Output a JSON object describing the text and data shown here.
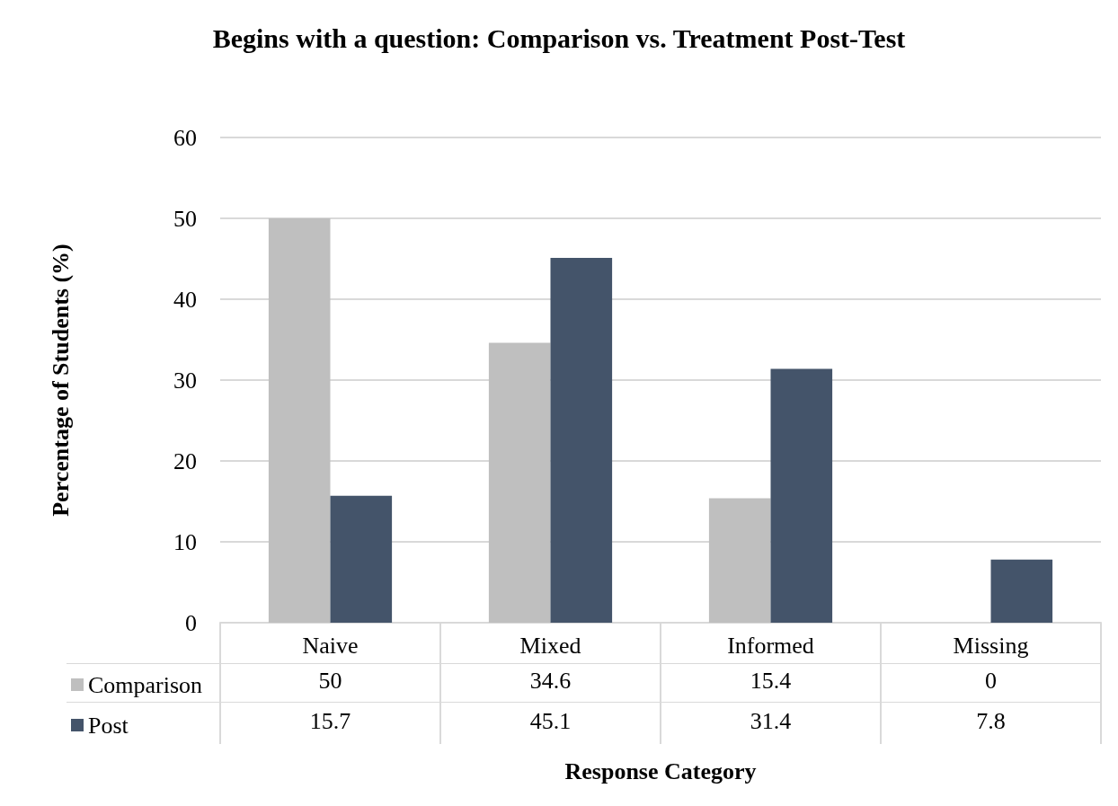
{
  "chart_data": {
    "type": "bar",
    "title": "Begins with a question: Comparison vs. Treatment Post-Test",
    "xlabel": "Response Category",
    "ylabel": "Percentage of Students (%)",
    "categories": [
      "Naive",
      "Mixed",
      "Informed",
      "Missing"
    ],
    "series": [
      {
        "name": "Comparison",
        "color": "#bfbfbf",
        "values": [
          50,
          34.6,
          15.4,
          0
        ]
      },
      {
        "name": "Post",
        "color": "#44546a",
        "values": [
          15.7,
          45.1,
          31.4,
          7.8
        ]
      }
    ],
    "ylim": [
      0,
      60
    ],
    "yticks": [
      0,
      10,
      20,
      30,
      40,
      50,
      60
    ],
    "grid": "y",
    "legend": "bottom left",
    "data_labels": true
  }
}
